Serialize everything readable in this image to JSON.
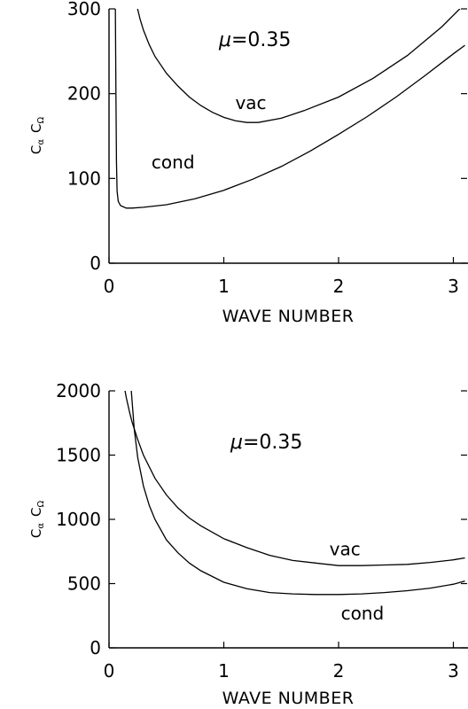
{
  "chart_data": [
    {
      "type": "line",
      "xlabel": "WAVE NUMBER",
      "ylabel": "C_α C_Ω",
      "ylabel_parts": {
        "c1": "C",
        "s1": "α",
        "c2": "C",
        "s2": "Ω"
      },
      "xlim": [
        0,
        3.1
      ],
      "ylim": [
        0,
        300
      ],
      "xticks": [
        0,
        1,
        2,
        3
      ],
      "yticks": [
        0,
        100,
        200,
        300
      ],
      "parameter_annotation": {
        "symbol": "μ",
        "text": "=0.35"
      },
      "series": [
        {
          "name": "cond",
          "x": [
            0.055,
            0.06,
            0.065,
            0.07,
            0.08,
            0.1,
            0.15,
            0.2,
            0.3,
            0.5,
            0.75,
            1.0,
            1.25,
            1.5,
            1.75,
            2.0,
            2.25,
            2.5,
            2.75,
            3.0,
            3.1
          ],
          "y": [
            310,
            200,
            120,
            85,
            73,
            68,
            65,
            65,
            66,
            69,
            76,
            86,
            99,
            114,
            132,
            152,
            173,
            196,
            221,
            247,
            257
          ]
        },
        {
          "name": "vac",
          "x": [
            0.24,
            0.27,
            0.3,
            0.35,
            0.4,
            0.5,
            0.6,
            0.7,
            0.8,
            0.9,
            1.0,
            1.1,
            1.2,
            1.3,
            1.5,
            1.7,
            2.0,
            2.3,
            2.6,
            2.9,
            3.1
          ],
          "y": [
            305,
            288,
            275,
            258,
            244,
            224,
            209,
            196,
            186,
            178,
            172,
            168,
            166,
            166,
            171,
            180,
            196,
            218,
            245,
            279,
            306
          ]
        }
      ],
      "annotations": [
        {
          "text": "vac",
          "x": 1.1,
          "y": 182
        },
        {
          "text": "cond",
          "x": 0.37,
          "y": 112
        }
      ]
    },
    {
      "type": "line",
      "xlabel": "WAVE NUMBER",
      "ylabel": "C_α C_Ω",
      "ylabel_parts": {
        "c1": "C",
        "s1": "α",
        "c2": "C",
        "s2": "Ω"
      },
      "xlim": [
        0,
        3.1
      ],
      "ylim": [
        0,
        2000
      ],
      "xticks": [
        0,
        1,
        2,
        3
      ],
      "yticks": [
        0,
        500,
        1000,
        1500,
        2000
      ],
      "parameter_annotation": {
        "symbol": "μ",
        "text": "=0.35"
      },
      "series": [
        {
          "name": "vac",
          "x": [
            0.13,
            0.15,
            0.18,
            0.2,
            0.25,
            0.3,
            0.4,
            0.5,
            0.6,
            0.7,
            0.8,
            1.0,
            1.2,
            1.4,
            1.6,
            1.8,
            2.0,
            2.2,
            2.4,
            2.6,
            2.8,
            3.0,
            3.1
          ],
          "y": [
            2050,
            1950,
            1830,
            1760,
            1620,
            1500,
            1320,
            1190,
            1090,
            1010,
            950,
            850,
            780,
            720,
            680,
            660,
            640,
            640,
            645,
            650,
            665,
            685,
            700
          ]
        },
        {
          "name": "cond",
          "x": [
            0.19,
            0.2,
            0.22,
            0.25,
            0.3,
            0.35,
            0.4,
            0.5,
            0.6,
            0.7,
            0.8,
            1.0,
            1.2,
            1.4,
            1.6,
            1.8,
            2.0,
            2.2,
            2.4,
            2.6,
            2.8,
            3.0,
            3.1
          ],
          "y": [
            2050,
            1930,
            1700,
            1480,
            1260,
            1110,
            1000,
            840,
            740,
            660,
            600,
            510,
            460,
            430,
            420,
            415,
            415,
            420,
            430,
            445,
            465,
            495,
            520
          ]
        }
      ],
      "annotations": [
        {
          "text": "vac",
          "x": 1.92,
          "y": 720
        },
        {
          "text": "cond",
          "x": 2.02,
          "y": 220
        }
      ]
    }
  ]
}
